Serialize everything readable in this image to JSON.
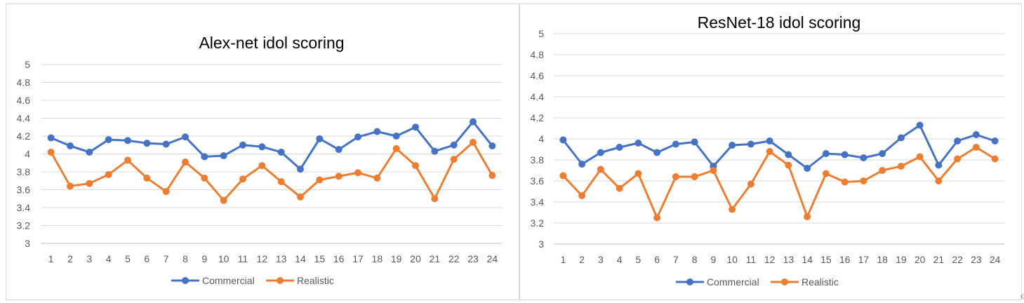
{
  "chart_data": [
    {
      "type": "line",
      "title": "Alex-net idol scoring",
      "xlabel": "",
      "ylabel": "",
      "ylim": [
        3,
        5
      ],
      "yticks": [
        "3",
        "3.2",
        "3.4",
        "3.6",
        "3.8",
        "4",
        "4.2",
        "4.4",
        "4.6",
        "4.8",
        "5"
      ],
      "categories": [
        "1",
        "2",
        "3",
        "4",
        "5",
        "6",
        "7",
        "8",
        "9",
        "10",
        "11",
        "12",
        "13",
        "14",
        "15",
        "16",
        "17",
        "18",
        "19",
        "20",
        "21",
        "22",
        "23",
        "24"
      ],
      "grid": true,
      "legend_position": "bottom",
      "series": [
        {
          "name": "Commercial",
          "color": "#4472C4",
          "values": [
            4.18,
            4.09,
            4.02,
            4.16,
            4.15,
            4.12,
            4.11,
            4.19,
            3.97,
            3.98,
            4.1,
            4.08,
            4.02,
            3.83,
            4.17,
            4.05,
            4.19,
            4.25,
            4.2,
            4.3,
            4.03,
            4.1,
            4.36,
            4.09
          ]
        },
        {
          "name": "Realistic",
          "color": "#ED7D31",
          "values": [
            4.02,
            3.64,
            3.67,
            3.77,
            3.93,
            3.73,
            3.58,
            3.91,
            3.73,
            3.48,
            3.72,
            3.87,
            3.69,
            3.52,
            3.71,
            3.75,
            3.79,
            3.73,
            4.06,
            3.87,
            3.5,
            3.94,
            4.13,
            3.76
          ]
        }
      ]
    },
    {
      "type": "line",
      "title": "ResNet-18 idol scoring",
      "xlabel": "",
      "ylabel": "",
      "ylim": [
        3,
        5
      ],
      "yticks": [
        "3",
        "3.2",
        "3.4",
        "3.6",
        "3.8",
        "4",
        "4.2",
        "4.4",
        "4.6",
        "4.8",
        "5"
      ],
      "categories": [
        "1",
        "2",
        "3",
        "4",
        "5",
        "6",
        "7",
        "8",
        "9",
        "10",
        "11",
        "12",
        "13",
        "14",
        "15",
        "16",
        "17",
        "18",
        "19",
        "20",
        "21",
        "22",
        "23",
        "24"
      ],
      "grid": true,
      "legend_position": "bottom",
      "series": [
        {
          "name": "Commercial",
          "color": "#4472C4",
          "values": [
            3.99,
            3.76,
            3.87,
            3.92,
            3.96,
            3.87,
            3.95,
            3.97,
            3.74,
            3.94,
            3.95,
            3.98,
            3.85,
            3.72,
            3.86,
            3.85,
            3.82,
            3.86,
            4.01,
            4.13,
            3.75,
            3.98,
            4.04,
            3.98
          ]
        },
        {
          "name": "Realistic",
          "color": "#ED7D31",
          "values": [
            3.65,
            3.46,
            3.71,
            3.53,
            3.67,
            3.25,
            3.64,
            3.64,
            3.7,
            3.33,
            3.57,
            3.88,
            3.75,
            3.26,
            3.67,
            3.59,
            3.6,
            3.7,
            3.74,
            3.83,
            3.6,
            3.81,
            3.92,
            3.81
          ]
        }
      ]
    }
  ],
  "corner_mark": "€"
}
